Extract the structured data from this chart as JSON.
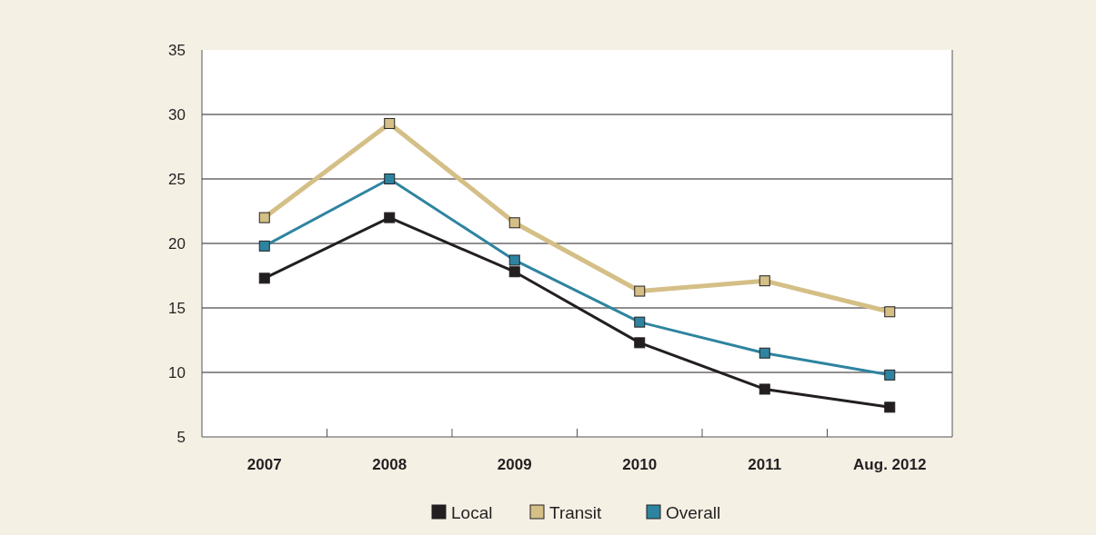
{
  "chart_data": {
    "type": "line",
    "categories": [
      "2007",
      "2008",
      "2009",
      "2010",
      "2011",
      "Aug. 2012"
    ],
    "series": [
      {
        "name": "Local",
        "color": "#231f20",
        "values": [
          17.3,
          22.0,
          17.8,
          12.3,
          8.7,
          7.3
        ]
      },
      {
        "name": "Transit",
        "color": "#d4bf86",
        "values": [
          22.0,
          29.3,
          21.6,
          16.3,
          17.1,
          14.7
        ]
      },
      {
        "name": "Overall",
        "color": "#2e84a0",
        "values": [
          19.8,
          25.0,
          18.7,
          13.9,
          11.5,
          9.8
        ]
      }
    ],
    "ylim": [
      5,
      35
    ],
    "yticks": [
      5,
      10,
      15,
      20,
      25,
      30,
      35
    ],
    "grid": "y",
    "legend": "bottom",
    "marker": "square",
    "line_style": "solid"
  }
}
